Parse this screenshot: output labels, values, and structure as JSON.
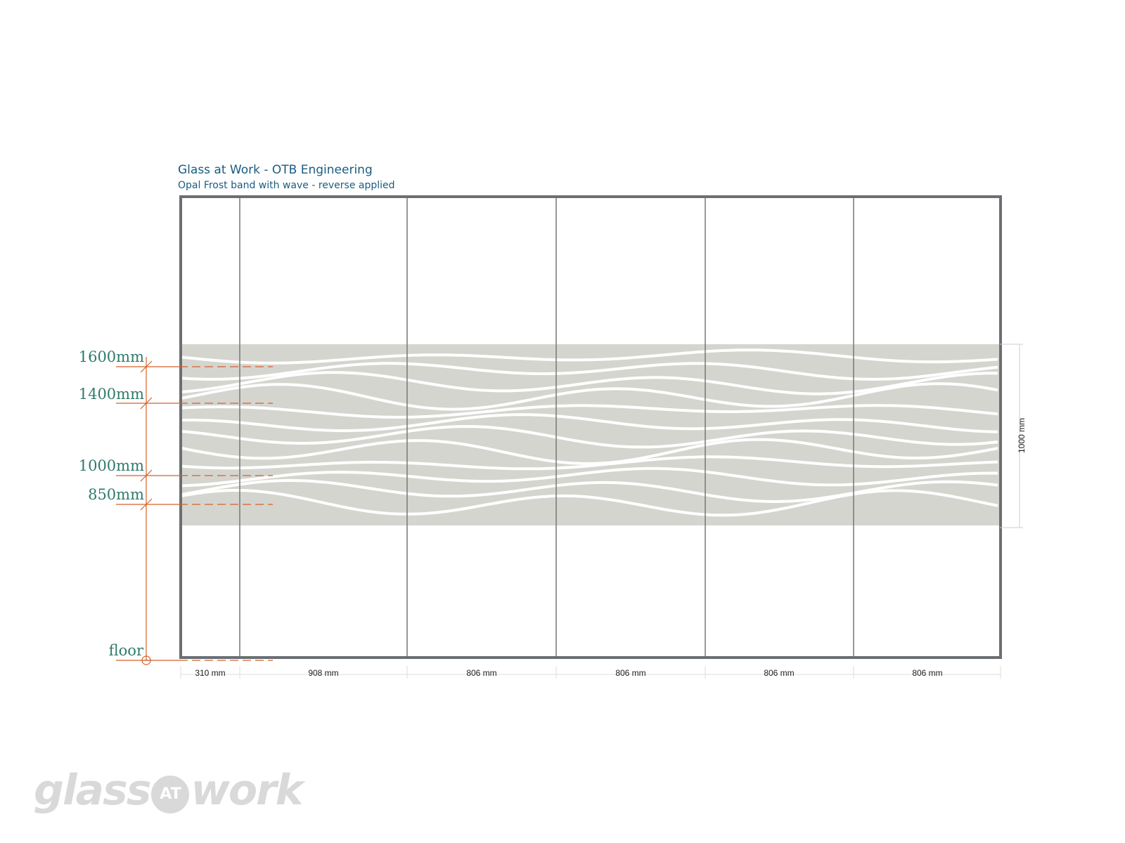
{
  "title": "Glass at Work - OTB Engineering",
  "subtitle": "Opal Frost band with wave - reverse applied",
  "height_markers": [
    {
      "label": "1600mm",
      "value_mm": 1600
    },
    {
      "label": "1400mm",
      "value_mm": 1400
    },
    {
      "label": "1000mm",
      "value_mm": 1000
    },
    {
      "label": "850mm",
      "value_mm": 850
    }
  ],
  "floor_label": "floor",
  "band_height_label": "1000 mm",
  "panel_widths": [
    "310 mm",
    "908 mm",
    "806 mm",
    "806 mm",
    "806 mm",
    "806 mm"
  ],
  "logo": {
    "part1": "glass",
    "part2": "AT",
    "part3": "work"
  },
  "colors": {
    "title": "#1a5c80",
    "marker_text": "#2f7a6c",
    "marker_lines": "#d4622a",
    "frame": "#6b6f73",
    "band": "#d5d5cf",
    "logo": "#d9d9d9"
  }
}
